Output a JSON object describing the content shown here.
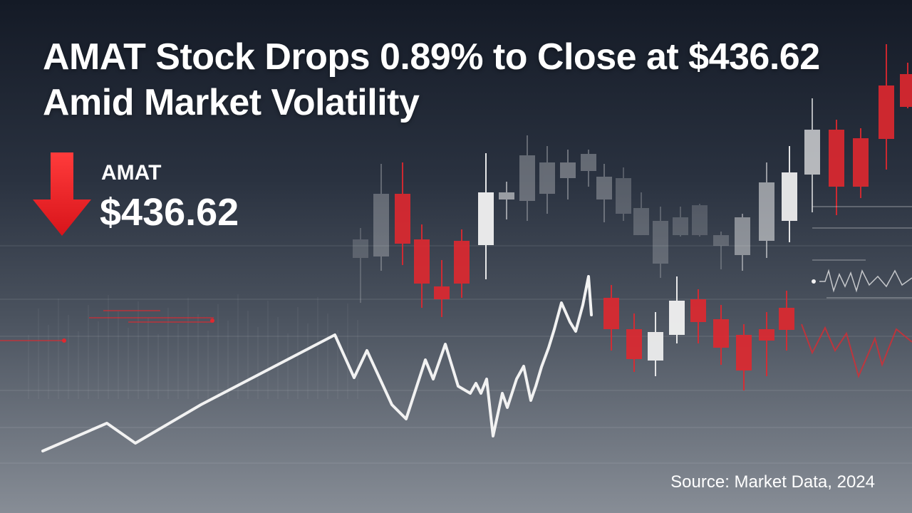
{
  "headline": "AMAT Stock Drops 0.89% to Close at $436.62 Amid Market Volatility",
  "stock": {
    "ticker": "AMAT",
    "price": "$436.62",
    "direction": "down",
    "direction_icon": "down-arrow-icon"
  },
  "source": "Source: Market Data, 2024",
  "colors": {
    "down": "#e0282f",
    "up": "#f2f2f2",
    "background_top": "#141a26",
    "background_bottom": "#878d96"
  }
}
